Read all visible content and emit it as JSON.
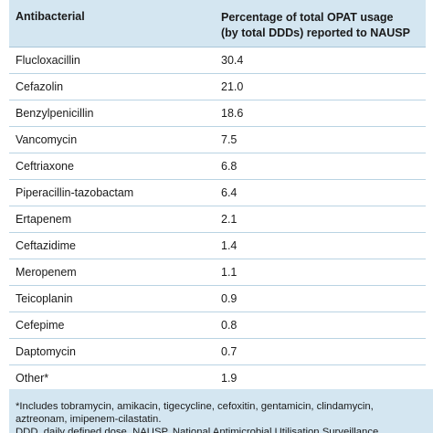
{
  "table": {
    "headers": {
      "col1": "Antibacterial",
      "col2_line1": "Percentage of total OPAT usage",
      "col2_line2": "(by total DDDs) reported to NAUSP"
    },
    "rows": [
      {
        "name": "Flucloxacillin",
        "value": "30.4"
      },
      {
        "name": "Cefazolin",
        "value": "21.0"
      },
      {
        "name": "Benzylpenicillin",
        "value": "18.6"
      },
      {
        "name": "Vancomycin",
        "value": "7.5"
      },
      {
        "name": "Ceftriaxone",
        "value": "6.8"
      },
      {
        "name": "Piperacillin-tazobactam",
        "value": "6.4"
      },
      {
        "name": "Ertapenem",
        "value": "2.1"
      },
      {
        "name": "Ceftazidime",
        "value": "1.4"
      },
      {
        "name": "Meropenem",
        "value": "1.1"
      },
      {
        "name": "Teicoplanin",
        "value": "0.9"
      },
      {
        "name": "Cefepime",
        "value": "0.8"
      },
      {
        "name": "Daptomycin",
        "value": "0.7"
      },
      {
        "name": "Other*",
        "value": "1.9"
      }
    ]
  },
  "footnote": {
    "line1": "*Includes tobramycin, amikacin, tigecycline, cefoxitin, gentamicin, clindamycin,",
    "line2": "aztreonam, imipenem-cilastatin.",
    "line3": "DDD, daily defined dose. NAUSP, National Antimicrobial Utilisation Surveillance"
  },
  "colors": {
    "header_bg": "#d4e6f1",
    "row_border": "#b9d3e3",
    "text": "#1a1a1a"
  }
}
